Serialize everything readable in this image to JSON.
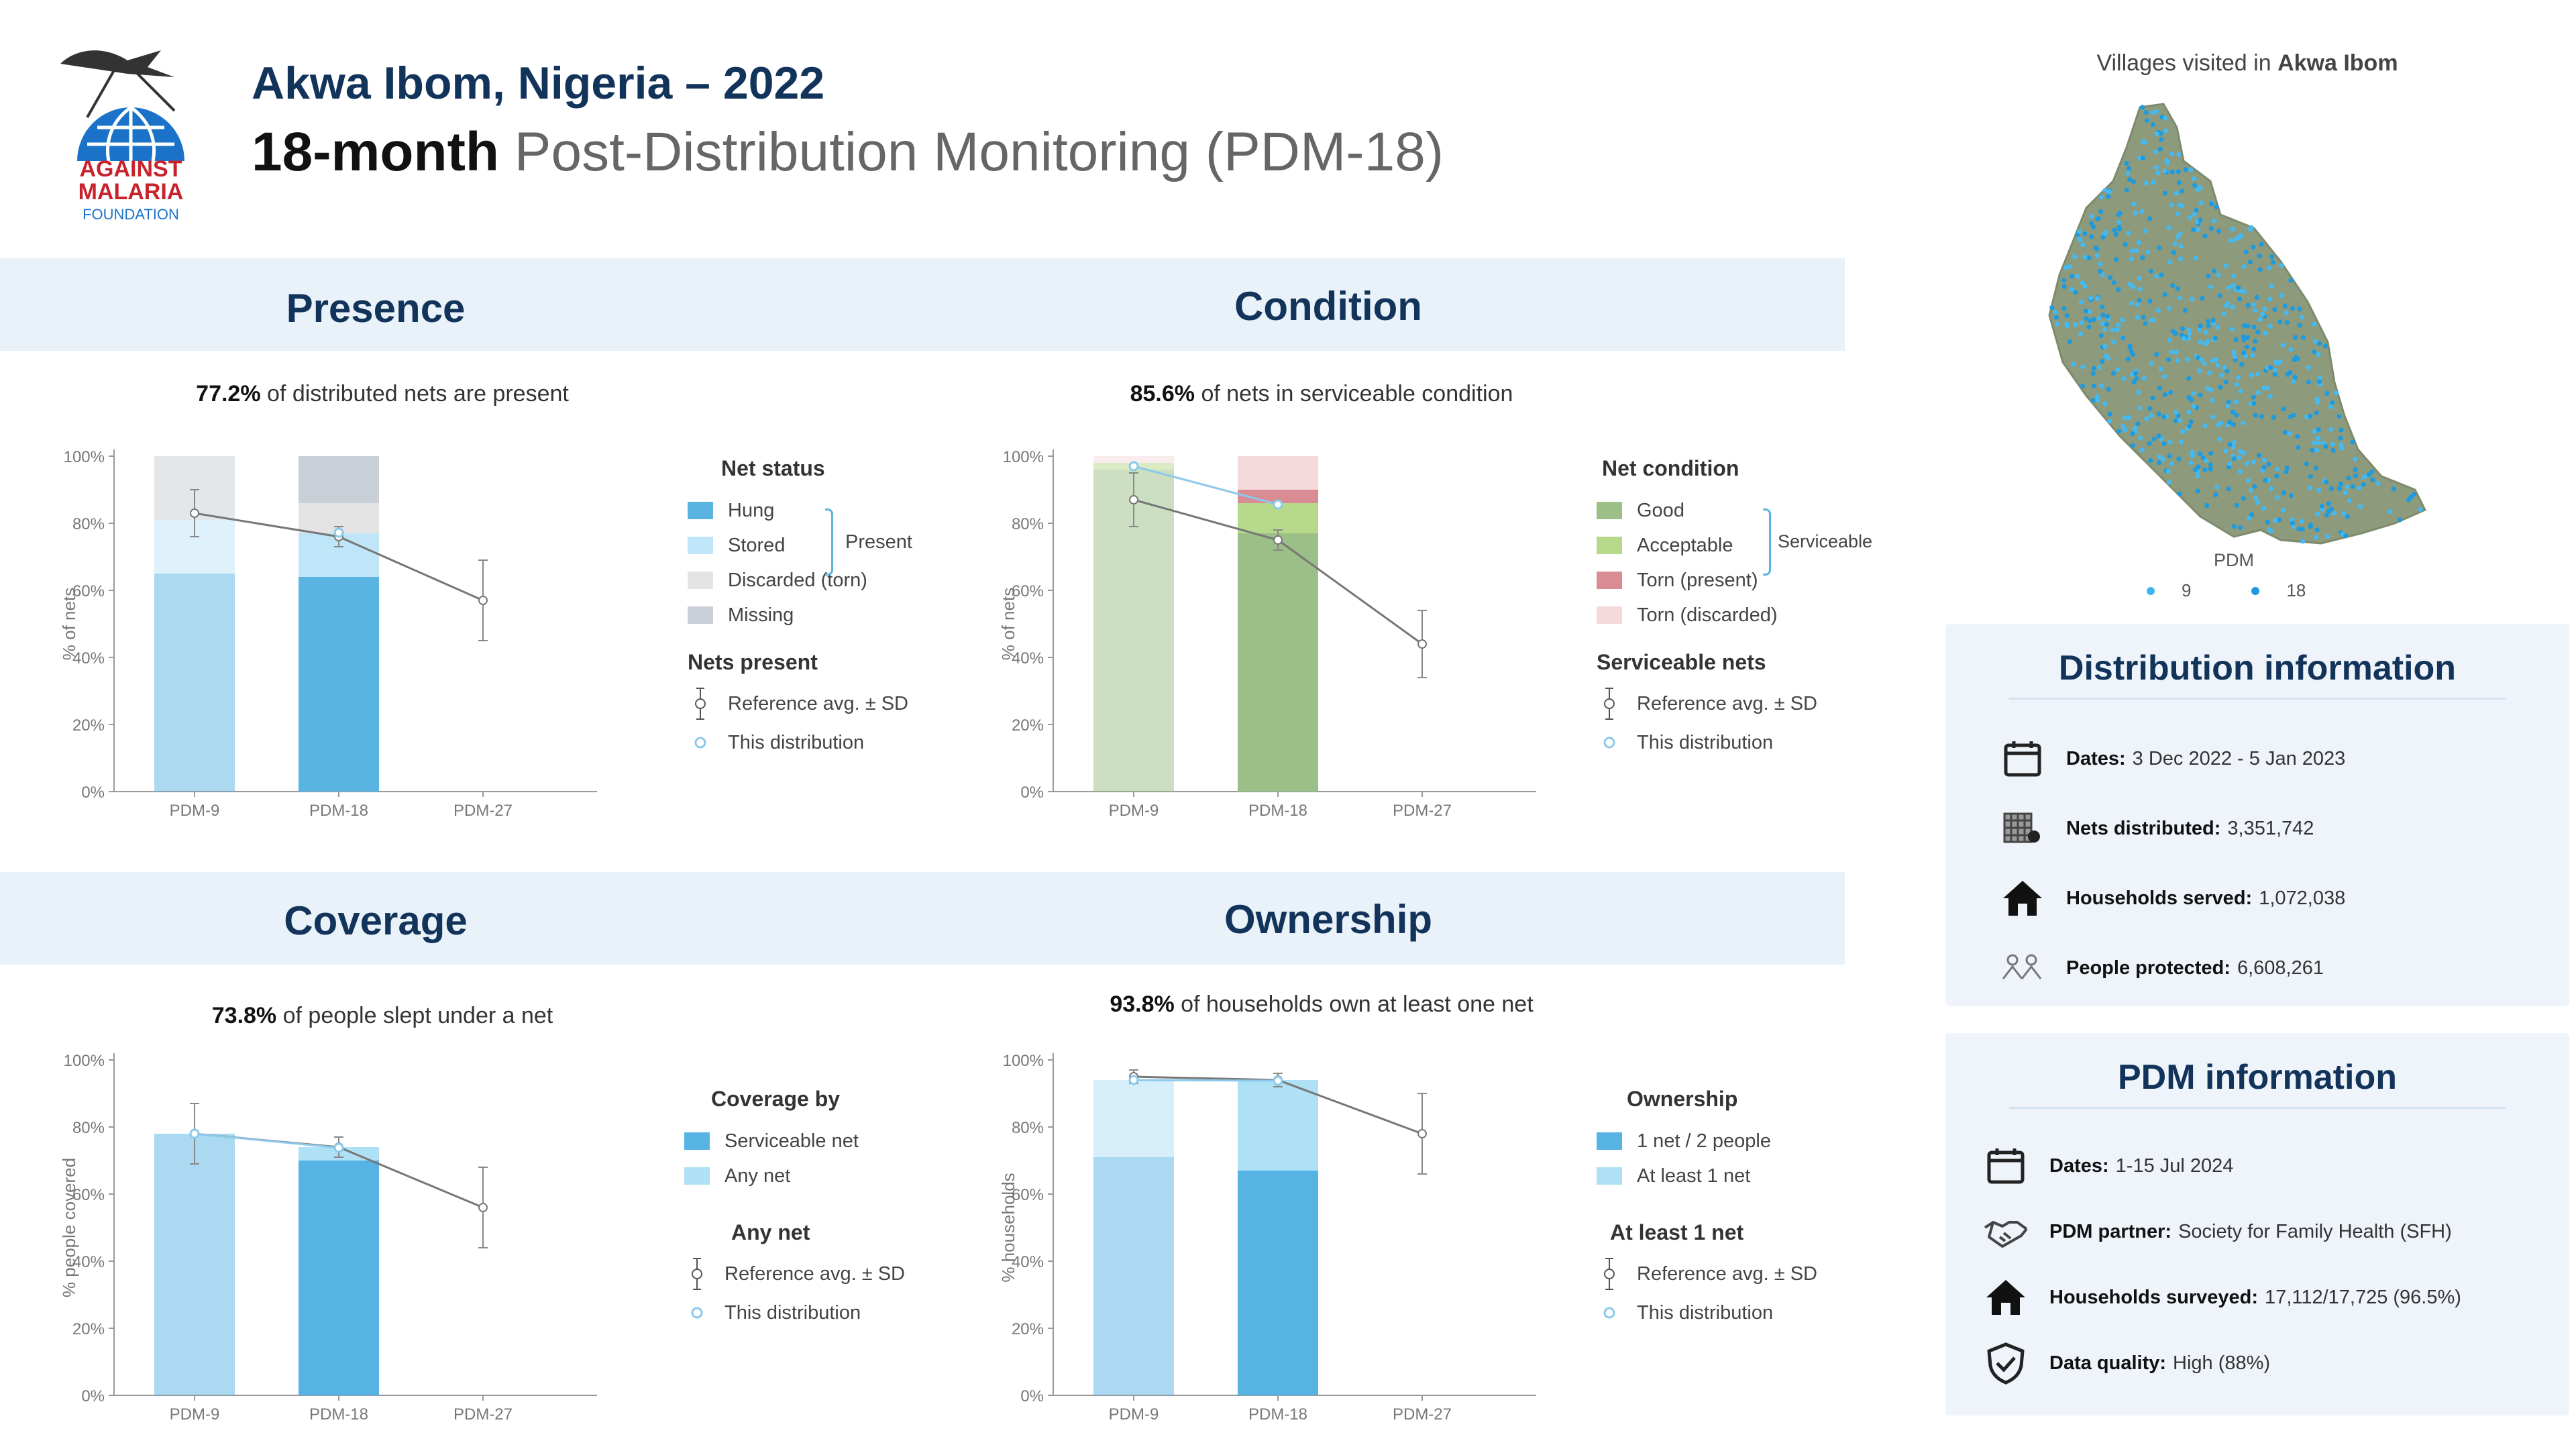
{
  "header": {
    "logo": {
      "line1": "AGAINST",
      "line2": "MALARIA",
      "line3": "FOUNDATION"
    },
    "title": "Akwa Ibom, Nigeria – 2022",
    "subtitle_bold": "18-month",
    "subtitle_rest": "Post-Distribution Monitoring (PDM-18)"
  },
  "colors": {
    "navy": "#12335a",
    "band": "#e9f1f9",
    "hung": "#5ab4e2",
    "stored": "#bfe6f8",
    "discarded": "#e4e4e4",
    "missing": "#c9cfd6",
    "good": "#9bbf86",
    "acceptable": "#b7d98c",
    "torn_present": "#d98c94",
    "torn_discarded": "#f4dada",
    "serviceable_net": "#56b3e4",
    "any_net": "#aee0f6"
  },
  "sections": {
    "presence": "Presence",
    "condition": "Condition",
    "coverage": "Coverage",
    "ownership": "Ownership"
  },
  "charts": {
    "presence": {
      "headline_value": "77.2%",
      "headline_text": "of distributed nets are present",
      "legend_title": "Net status",
      "legend_items": [
        "Hung",
        "Stored",
        "Discarded (torn)",
        "Missing"
      ],
      "group_label": "Present",
      "ref_title": "Nets present",
      "ref_label": "Reference avg. ± SD",
      "this_label": "This distribution"
    },
    "condition": {
      "headline_value": "85.6%",
      "headline_text": "of nets in serviceable condition",
      "legend_title": "Net condition",
      "legend_items": [
        "Good",
        "Acceptable",
        "Torn (present)",
        "Torn (discarded)"
      ],
      "group_label": "Serviceable",
      "ref_title": "Serviceable nets",
      "ref_label": "Reference avg. ± SD",
      "this_label": "This distribution"
    },
    "coverage": {
      "headline_value": "73.8%",
      "headline_text": "of people slept under a net",
      "legend_title": "Coverage by",
      "legend_items": [
        "Serviceable net",
        "Any net"
      ],
      "ref_title": "Any net",
      "ref_label": "Reference avg. ± SD",
      "this_label": "This distribution"
    },
    "ownership": {
      "headline_value": "93.8%",
      "headline_text": "of households own at least one net",
      "legend_title": "Ownership",
      "legend_items": [
        "1 net / 2 people",
        "At least 1 net"
      ],
      "ref_title": "At least 1 net",
      "ref_label": "Reference avg. ± SD",
      "this_label": "This distribution"
    }
  },
  "chart_data": [
    {
      "id": "presence",
      "type": "bar",
      "ylabel": "% of nets",
      "categories": [
        "PDM-9",
        "PDM-18",
        "PDM-27"
      ],
      "yticks": [
        "0%",
        "20%",
        "40%",
        "60%",
        "80%",
        "100%"
      ],
      "ylim": [
        0,
        100
      ],
      "series": [
        {
          "name": "Hung",
          "values": [
            65,
            64,
            null
          ]
        },
        {
          "name": "Stored",
          "values": [
            16,
            13,
            null
          ]
        },
        {
          "name": "Discarded (torn)",
          "values": [
            0,
            9,
            null
          ]
        },
        {
          "name": "Missing",
          "values": [
            19,
            14,
            null
          ]
        }
      ],
      "reference": {
        "name": "Reference avg. ± SD",
        "mean": [
          83,
          76,
          57
        ],
        "sd": [
          7,
          3,
          12
        ]
      },
      "this_distribution": {
        "name": "This distribution",
        "values": [
          null,
          77.2,
          null
        ]
      }
    },
    {
      "id": "condition",
      "type": "bar",
      "ylabel": "% of nets",
      "categories": [
        "PDM-9",
        "PDM-18",
        "PDM-27"
      ],
      "yticks": [
        "0%",
        "20%",
        "40%",
        "60%",
        "80%",
        "100%"
      ],
      "ylim": [
        0,
        100
      ],
      "series": [
        {
          "name": "Good",
          "values": [
            96,
            77,
            null
          ]
        },
        {
          "name": "Acceptable",
          "values": [
            2,
            9,
            null
          ]
        },
        {
          "name": "Torn (present)",
          "values": [
            0,
            4,
            null
          ]
        },
        {
          "name": "Torn (discarded)",
          "values": [
            2,
            10,
            null
          ]
        }
      ],
      "reference": {
        "name": "Reference avg. ± SD",
        "mean": [
          87,
          75,
          44
        ],
        "sd": [
          8,
          3,
          10
        ]
      },
      "this_distribution": {
        "name": "This distribution",
        "values": [
          97,
          85.6,
          null
        ]
      }
    },
    {
      "id": "coverage",
      "type": "bar",
      "ylabel": "% people covered",
      "categories": [
        "PDM-9",
        "PDM-18",
        "PDM-27"
      ],
      "yticks": [
        "0%",
        "20%",
        "40%",
        "60%",
        "80%",
        "100%"
      ],
      "ylim": [
        0,
        100
      ],
      "series": [
        {
          "name": "Serviceable net",
          "values": [
            78,
            70,
            null
          ]
        },
        {
          "name": "Any net",
          "values": [
            0,
            4,
            null
          ]
        }
      ],
      "reference": {
        "name": "Reference avg. ± SD",
        "mean": [
          78,
          74,
          56
        ],
        "sd": [
          9,
          3,
          12
        ]
      },
      "this_distribution": {
        "name": "This distribution",
        "values": [
          78,
          73.8,
          null
        ]
      }
    },
    {
      "id": "ownership",
      "type": "bar",
      "ylabel": "% households",
      "categories": [
        "PDM-9",
        "PDM-18",
        "PDM-27"
      ],
      "yticks": [
        "0%",
        "20%",
        "40%",
        "60%",
        "80%",
        "100%"
      ],
      "ylim": [
        0,
        100
      ],
      "series": [
        {
          "name": "1 net / 2 people",
          "values": [
            71,
            67,
            null
          ]
        },
        {
          "name": "At least 1 net",
          "values": [
            23,
            27,
            null
          ]
        }
      ],
      "reference": {
        "name": "Reference avg. ± SD",
        "mean": [
          95,
          94,
          78
        ],
        "sd": [
          2,
          2,
          12
        ]
      },
      "this_distribution": {
        "name": "This distribution",
        "values": [
          94,
          93.8,
          null
        ]
      }
    }
  ],
  "map": {
    "title_prefix": "Villages visited in",
    "title_bold": "Akwa Ibom",
    "legend_title": "PDM",
    "legend_items": [
      "9",
      "18"
    ]
  },
  "distribution_info": {
    "title": "Distribution information",
    "rows": [
      {
        "icon": "calendar-icon",
        "label": "Dates:",
        "value": "3 Dec 2022 - 5 Jan 2023"
      },
      {
        "icon": "nets-icon",
        "label": "Nets distributed:",
        "value": "3,351,742"
      },
      {
        "icon": "house-icon",
        "label": "Households served:",
        "value": "1,072,038"
      },
      {
        "icon": "people-icon",
        "label": "People protected:",
        "value": "6,608,261"
      }
    ]
  },
  "pdm_info": {
    "title": "PDM information",
    "rows": [
      {
        "icon": "calendar-icon",
        "label": "Dates:",
        "value": "1-15 Jul 2024"
      },
      {
        "icon": "handshake-icon",
        "label": "PDM partner:",
        "value": "Society for Family Health (SFH)"
      },
      {
        "icon": "house-icon",
        "label": "Households surveyed:",
        "value": "17,112/17,725 (96.5%)"
      },
      {
        "icon": "shield-check-icon",
        "label": "Data quality:",
        "value": "High (88%)"
      }
    ]
  }
}
